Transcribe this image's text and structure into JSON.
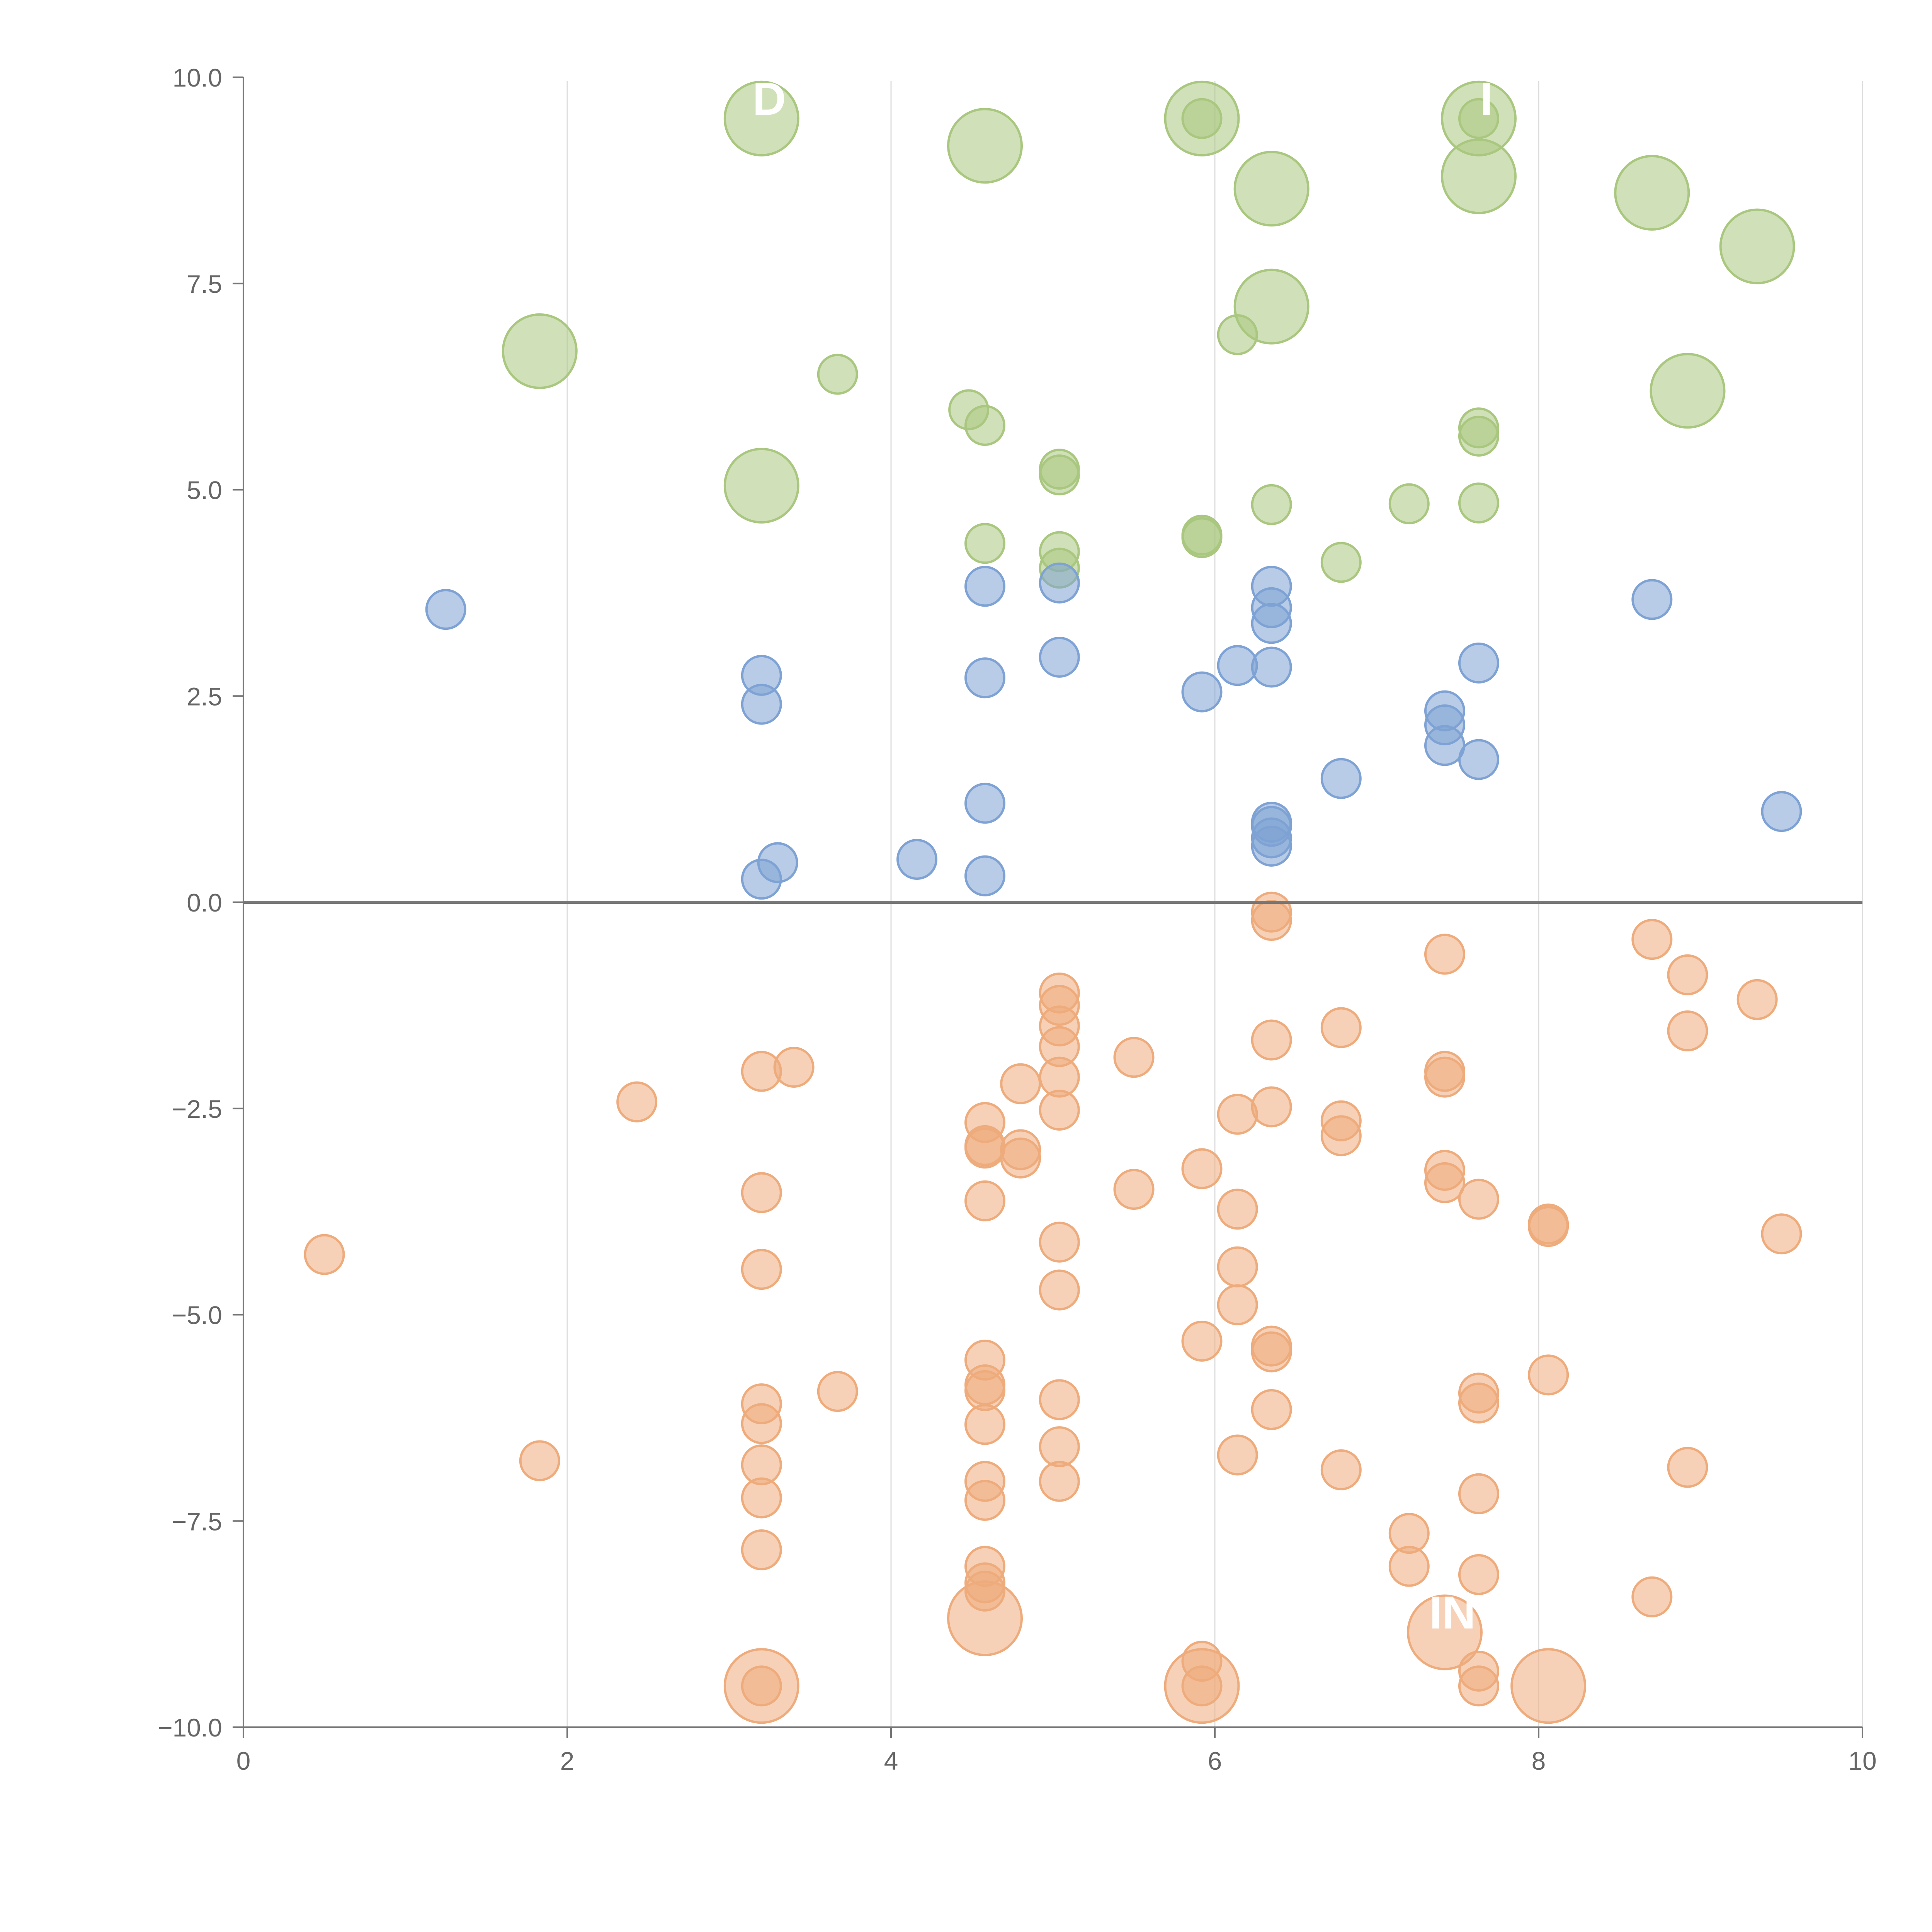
{
  "chart_data": {
    "type": "scatter",
    "title": "",
    "xlabel": "",
    "ylabel": "",
    "xlim": [
      0,
      10
    ],
    "ylim": [
      -10,
      10
    ],
    "x_ticks": [
      "0",
      "2",
      "4",
      "6",
      "8",
      "10"
    ],
    "y_ticks": [
      "10.0",
      "7.5",
      "5.0",
      "2.5",
      "0.0",
      "−2.5",
      "−5.0",
      "−7.5",
      "−10.0"
    ],
    "x_tick_values": [
      0,
      2,
      4,
      6,
      8,
      10
    ],
    "y_tick_values": [
      10,
      7.5,
      5,
      2.5,
      0,
      -2.5,
      -5,
      -7.5,
      -10
    ],
    "grid": "vertical",
    "baseline": 0,
    "series": [
      {
        "name": "green",
        "color": "#a9c77f",
        "points": [
          [
            3.2,
            9.5,
            2
          ],
          [
            4.58,
            9.17,
            2
          ],
          [
            5.92,
            9.5,
            2
          ],
          [
            7.63,
            9.5,
            2
          ],
          [
            6.35,
            8.65,
            2
          ],
          [
            7.63,
            8.8,
            2
          ],
          [
            8.7,
            8.6,
            2
          ],
          [
            9.35,
            7.95,
            2
          ],
          [
            6.35,
            7.22,
            2
          ],
          [
            1.83,
            6.68,
            2
          ],
          [
            8.92,
            6.2,
            2
          ],
          [
            3.2,
            5.05,
            2
          ],
          [
            5.92,
            9.5,
            1
          ],
          [
            7.63,
            9.5,
            1
          ],
          [
            6.14,
            6.88,
            1
          ],
          [
            3.67,
            6.4,
            1
          ],
          [
            4.48,
            5.97,
            1
          ],
          [
            4.58,
            5.78,
            1
          ],
          [
            7.63,
            5.75,
            1
          ],
          [
            7.63,
            5.65,
            1
          ],
          [
            5.04,
            5.25,
            1
          ],
          [
            5.04,
            5.18,
            1
          ],
          [
            6.35,
            4.82,
            1
          ],
          [
            7.2,
            4.83,
            1
          ],
          [
            7.63,
            4.84,
            1
          ],
          [
            5.92,
            4.45,
            1
          ],
          [
            5.92,
            4.42,
            1
          ],
          [
            4.58,
            4.35,
            1
          ],
          [
            5.04,
            4.25,
            1
          ],
          [
            5.04,
            4.05,
            1
          ],
          [
            6.78,
            4.12,
            1
          ]
        ]
      },
      {
        "name": "blue",
        "color": "#7ea2d4",
        "points": [
          [
            1.25,
            3.55,
            1
          ],
          [
            4.58,
            3.83,
            1
          ],
          [
            5.04,
            3.87,
            1
          ],
          [
            6.35,
            3.83,
            1
          ],
          [
            6.35,
            3.57,
            1
          ],
          [
            6.35,
            3.38,
            1
          ],
          [
            8.7,
            3.67,
            1
          ],
          [
            3.2,
            2.75,
            1
          ],
          [
            3.2,
            2.4,
            1
          ],
          [
            4.58,
            2.72,
            1
          ],
          [
            5.04,
            2.97,
            1
          ],
          [
            5.92,
            2.55,
            1
          ],
          [
            6.14,
            2.87,
            1
          ],
          [
            6.35,
            2.85,
            1
          ],
          [
            7.63,
            2.9,
            1
          ],
          [
            7.42,
            2.32,
            1
          ],
          [
            7.42,
            2.15,
            1
          ],
          [
            7.42,
            1.9,
            1
          ],
          [
            7.63,
            1.73,
            1
          ],
          [
            6.78,
            1.5,
            1
          ],
          [
            4.58,
            1.2,
            1
          ],
          [
            6.35,
            0.97,
            1
          ],
          [
            6.35,
            0.92,
            1
          ],
          [
            6.35,
            0.78,
            1
          ],
          [
            6.35,
            0.68,
            1
          ],
          [
            9.5,
            1.1,
            1
          ],
          [
            3.2,
            0.28,
            1
          ],
          [
            3.3,
            0.48,
            1
          ],
          [
            4.16,
            0.52,
            1
          ],
          [
            4.58,
            0.32,
            1
          ]
        ]
      },
      {
        "name": "orange",
        "color": "#eeab7c",
        "points": [
          [
            6.35,
            -0.12,
            1
          ],
          [
            6.35,
            -0.22,
            1
          ],
          [
            7.42,
            -0.63,
            1
          ],
          [
            8.7,
            -0.45,
            1
          ],
          [
            8.92,
            -0.88,
            1
          ],
          [
            9.35,
            -1.18,
            1
          ],
          [
            8.92,
            -1.56,
            1
          ],
          [
            5.04,
            -1.1,
            1
          ],
          [
            5.04,
            -1.25,
            1
          ],
          [
            5.04,
            -1.5,
            1
          ],
          [
            5.04,
            -1.75,
            1
          ],
          [
            5.04,
            -2.12,
            1
          ],
          [
            5.04,
            -2.52,
            1
          ],
          [
            6.35,
            -1.67,
            1
          ],
          [
            6.78,
            -1.52,
            1
          ],
          [
            5.5,
            -1.88,
            1
          ],
          [
            3.2,
            -2.05,
            1
          ],
          [
            3.4,
            -2.0,
            1
          ],
          [
            2.43,
            -2.42,
            1
          ],
          [
            4.8,
            -2.2,
            1
          ],
          [
            7.42,
            -2.05,
            1
          ],
          [
            7.42,
            -2.12,
            1
          ],
          [
            6.35,
            -2.48,
            1
          ],
          [
            6.14,
            -2.57,
            1
          ],
          [
            6.78,
            -2.65,
            1
          ],
          [
            6.78,
            -2.83,
            1
          ],
          [
            4.58,
            -2.67,
            1
          ],
          [
            4.58,
            -2.95,
            1
          ],
          [
            4.58,
            -2.98,
            1
          ],
          [
            4.8,
            -3.0,
            1
          ],
          [
            4.8,
            -3.1,
            1
          ],
          [
            5.92,
            -3.23,
            1
          ],
          [
            7.42,
            -3.25,
            1
          ],
          [
            7.42,
            -3.4,
            1
          ],
          [
            3.2,
            -3.52,
            1
          ],
          [
            5.5,
            -3.48,
            1
          ],
          [
            4.58,
            -3.62,
            1
          ],
          [
            6.14,
            -3.72,
            1
          ],
          [
            7.63,
            -3.6,
            1
          ],
          [
            8.06,
            -3.9,
            1
          ],
          [
            8.06,
            -3.93,
            1
          ],
          [
            9.5,
            -4.02,
            1
          ],
          [
            0.5,
            -4.27,
            1
          ],
          [
            5.04,
            -4.12,
            1
          ],
          [
            3.2,
            -4.45,
            1
          ],
          [
            6.14,
            -4.42,
            1
          ],
          [
            5.04,
            -4.7,
            1
          ],
          [
            6.14,
            -4.88,
            1
          ],
          [
            5.92,
            -5.32,
            1
          ],
          [
            6.35,
            -5.38,
            1
          ],
          [
            6.35,
            -5.45,
            1
          ],
          [
            4.58,
            -5.55,
            1
          ],
          [
            4.58,
            -5.85,
            1
          ],
          [
            4.58,
            -5.92,
            1
          ],
          [
            3.67,
            -5.93,
            1
          ],
          [
            7.63,
            -5.95,
            1
          ],
          [
            7.63,
            -6.07,
            1
          ],
          [
            8.06,
            -5.73,
            1
          ],
          [
            3.2,
            -6.08,
            1
          ],
          [
            5.04,
            -6.03,
            1
          ],
          [
            6.35,
            -6.15,
            1
          ],
          [
            3.2,
            -6.32,
            1
          ],
          [
            4.58,
            -6.33,
            1
          ],
          [
            5.04,
            -6.6,
            1
          ],
          [
            6.14,
            -6.7,
            1
          ],
          [
            1.83,
            -6.77,
            1
          ],
          [
            3.2,
            -6.82,
            1
          ],
          [
            6.78,
            -6.88,
            1
          ],
          [
            8.92,
            -6.85,
            1
          ],
          [
            4.58,
            -7.02,
            1
          ],
          [
            5.04,
            -7.02,
            1
          ],
          [
            7.63,
            -7.17,
            1
          ],
          [
            3.2,
            -7.22,
            1
          ],
          [
            4.58,
            -7.25,
            1
          ],
          [
            7.2,
            -7.65,
            1
          ],
          [
            3.2,
            -7.85,
            1
          ],
          [
            4.58,
            -8.05,
            1
          ],
          [
            4.58,
            -8.25,
            1
          ],
          [
            4.58,
            -8.35,
            1
          ],
          [
            7.2,
            -8.05,
            1
          ],
          [
            7.63,
            -8.15,
            1
          ],
          [
            8.7,
            -8.42,
            1
          ],
          [
            5.92,
            -9.2,
            1
          ],
          [
            7.63,
            -9.32,
            1
          ],
          [
            3.2,
            -9.5,
            1
          ],
          [
            5.92,
            -9.5,
            1
          ],
          [
            7.63,
            -9.5,
            1
          ],
          [
            4.58,
            -8.68,
            2
          ],
          [
            7.42,
            -8.85,
            2
          ],
          [
            3.2,
            -9.5,
            2
          ],
          [
            5.92,
            -9.5,
            2
          ],
          [
            8.06,
            -9.5,
            2
          ]
        ]
      }
    ],
    "annotations": [
      {
        "text": "D",
        "x": 3.2,
        "y": 9.5
      },
      {
        "text": "I",
        "x": 7.63,
        "y": 9.5
      },
      {
        "text": "IN",
        "x": 7.42,
        "y": -8.85
      }
    ]
  }
}
